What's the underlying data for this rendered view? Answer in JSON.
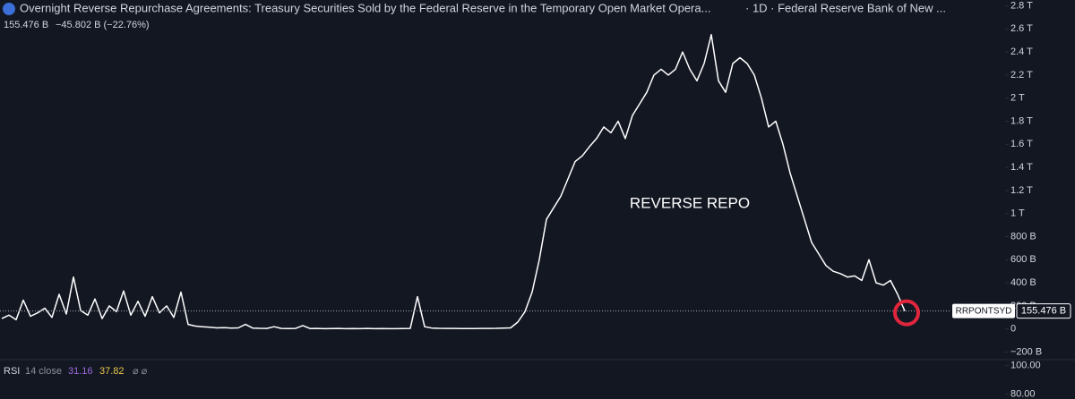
{
  "chart_data": {
    "type": "line",
    "title": "Overnight Reverse Repurchase Agreements: Treasury Securities Sold by the Federal Reserve in the Temporary Open Market Opera...",
    "subtitle": "· 1D · Federal Reserve Bank of New ...",
    "last_value_text": "155.476 B",
    "change_text": "−45.802 B (−22.76%)",
    "annotation": "REVERSE REPO",
    "symbol": "RRPONTSYD",
    "price_label": "155.476 B",
    "color": "#ffffff",
    "values": [
      90,
      120,
      80,
      250,
      110,
      140,
      180,
      100,
      300,
      130,
      450,
      160,
      120,
      260,
      90,
      200,
      150,
      330,
      120,
      240,
      110,
      280,
      140,
      200,
      100,
      320,
      40,
      25,
      20,
      15,
      10,
      12,
      8,
      10,
      40,
      8,
      6,
      5,
      20,
      5,
      4,
      5,
      30,
      4,
      5,
      3,
      4,
      5,
      3,
      4,
      3,
      5,
      3,
      4,
      3,
      3,
      4,
      5,
      280,
      20,
      8,
      6,
      5,
      5,
      4,
      4,
      4,
      5,
      5,
      6,
      8,
      10,
      60,
      150,
      320,
      600,
      950,
      1050,
      1150,
      1300,
      1450,
      1500,
      1580,
      1650,
      1750,
      1700,
      1800,
      1650,
      1850,
      1950,
      2050,
      2200,
      2250,
      2200,
      2250,
      2400,
      2250,
      2150,
      2300,
      2550,
      2150,
      2050,
      2300,
      2350,
      2300,
      2200,
      2000,
      1750,
      1800,
      1600,
      1350,
      1150,
      950,
      750,
      650,
      550,
      500,
      480,
      450,
      460,
      420,
      600,
      400,
      380,
      420,
      300,
      155.476
    ],
    "ylim": [
      -250,
      2850
    ],
    "yticks": [
      {
        "value": 2800,
        "label": "2.8 T"
      },
      {
        "value": 2600,
        "label": "2.6 T"
      },
      {
        "value": 2400,
        "label": "2.4 T"
      },
      {
        "value": 2200,
        "label": "2.2 T"
      },
      {
        "value": 2000,
        "label": "2 T"
      },
      {
        "value": 1800,
        "label": "1.8 T"
      },
      {
        "value": 1600,
        "label": "1.6 T"
      },
      {
        "value": 1400,
        "label": "1.4 T"
      },
      {
        "value": 1200,
        "label": "1.2 T"
      },
      {
        "value": 1000,
        "label": "1 T"
      },
      {
        "value": 800,
        "label": "800 B"
      },
      {
        "value": 600,
        "label": "600 B"
      },
      {
        "value": 400,
        "label": "400 B"
      },
      {
        "value": 200,
        "label": "200 B"
      },
      0,
      {
        "value": -200,
        "label": "−200 B"
      }
    ],
    "rsi": {
      "name": "RSI",
      "params": "14 close",
      "value_a": 31.16,
      "value_b": 37.82,
      "icons": "⌀ ⌀",
      "yticks": [
        {
          "value": 100,
          "label": "100.00"
        },
        {
          "value": 80,
          "label": "80.00"
        }
      ],
      "ylim": [
        101,
        76
      ]
    }
  }
}
